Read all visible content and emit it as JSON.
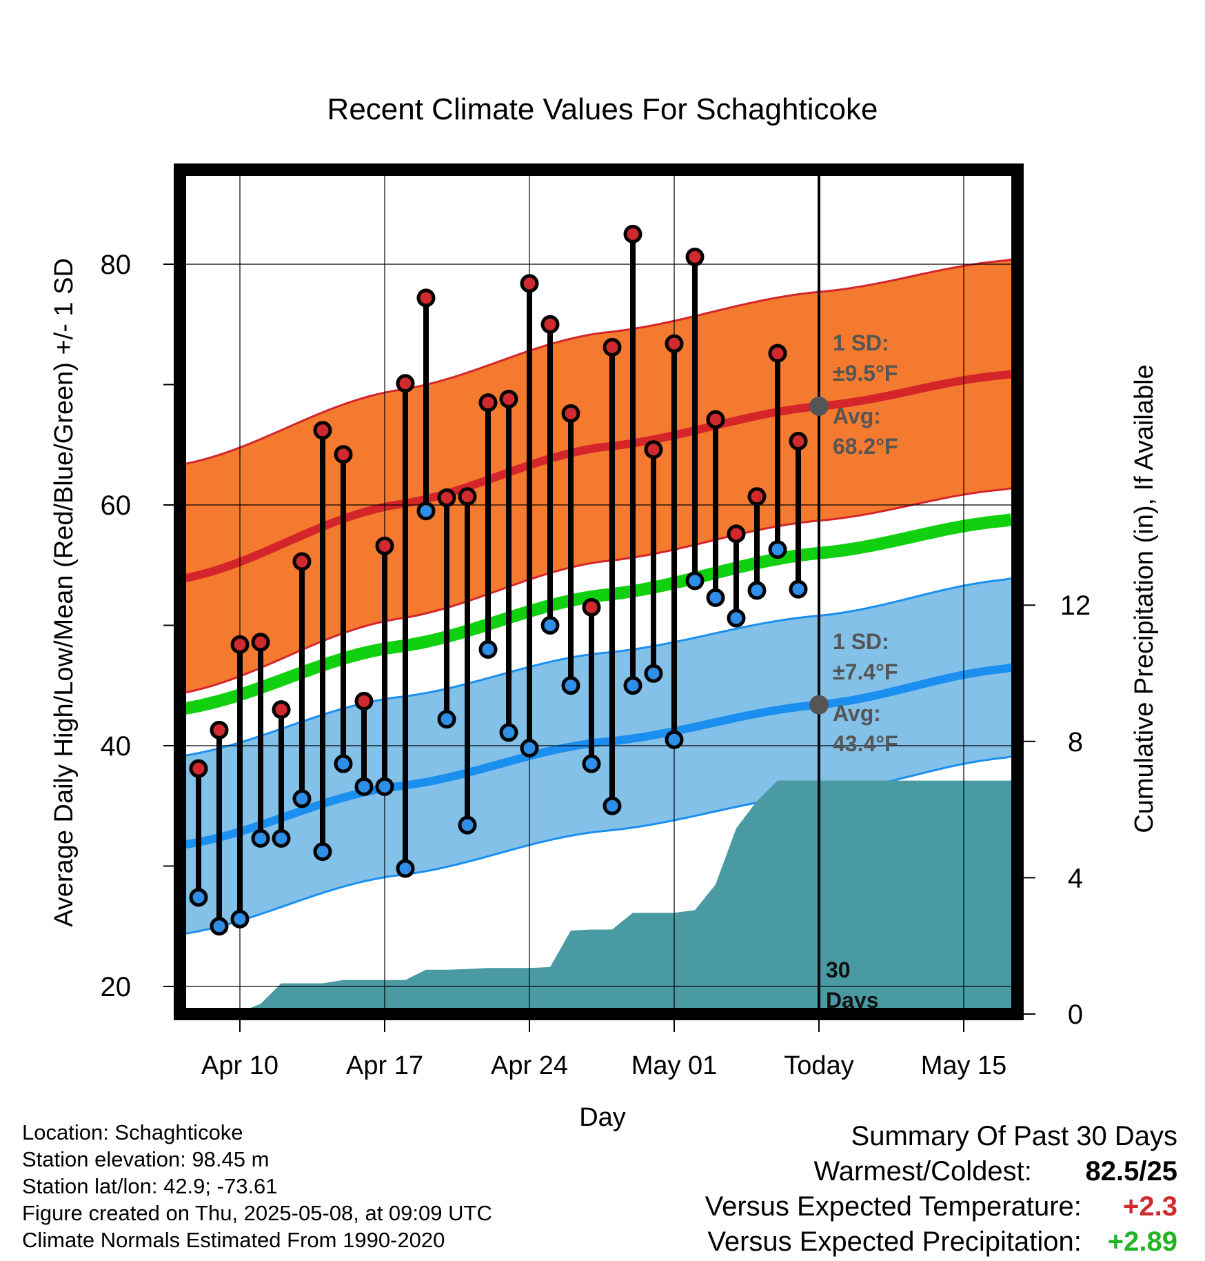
{
  "title": "Recent Climate Values For Schaghticoke",
  "chart_data": {
    "type": "scatter",
    "title": "Recent Climate Values For Schaghticoke",
    "xlabel": "Day",
    "ylabel_left": "Average Daily High/Low/Mean (Red/Blue/Green) +/- 1 SD",
    "ylabel_right": "Cumulative Precipitation (in), If Available",
    "x_ticks": [
      {
        "day": 10,
        "label": "Apr 10"
      },
      {
        "day": 17,
        "label": "Apr 17"
      },
      {
        "day": 24,
        "label": "Apr 24"
      },
      {
        "day": 31,
        "label": "May 01"
      },
      {
        "day": 38,
        "label": "Today"
      },
      {
        "day": 45,
        "label": "May 15"
      }
    ],
    "x_range": [
      6.8,
      47.3
    ],
    "y_left_ticks": [
      20,
      40,
      60,
      80
    ],
    "y_left_range": [
      17.6,
      88
    ],
    "y_right_ticks": [
      0,
      4,
      8,
      12
    ],
    "today_day": 38,
    "today_label": "30 Days",
    "grid": true,
    "days": [
      8,
      9,
      10,
      11,
      12,
      13,
      14,
      15,
      16,
      17,
      18,
      19,
      20,
      21,
      22,
      23,
      24,
      25,
      26,
      27,
      28,
      29,
      30,
      31,
      32,
      33,
      34,
      35,
      36,
      37
    ],
    "daily_high": [
      38.1,
      41.3,
      48.4,
      48.6,
      43.0,
      55.3,
      66.2,
      64.2,
      43.7,
      56.6,
      70.1,
      77.2,
      60.6,
      60.7,
      68.5,
      68.8,
      78.4,
      75.0,
      67.6,
      51.5,
      73.1,
      82.5,
      64.6,
      73.4,
      80.6,
      67.1,
      57.6,
      60.7,
      72.6,
      65.3
    ],
    "daily_low": [
      27.4,
      25.0,
      25.6,
      32.3,
      32.3,
      35.6,
      31.2,
      38.5,
      36.6,
      36.6,
      29.8,
      59.5,
      42.2,
      33.4,
      48.0,
      41.1,
      39.8,
      50.0,
      45.0,
      38.5,
      35.0,
      45.0,
      46.0,
      40.5,
      53.7,
      52.3,
      50.6,
      52.9,
      56.3,
      53.0
    ],
    "normal_high": {
      "series": "Avg",
      "days": [
        7,
        17.5,
        27.5,
        38,
        47
      ],
      "values": [
        53.8,
        60.0,
        64.8,
        68.2,
        70.8
      ]
    },
    "normal_high_sd": 9.5,
    "normal_low": {
      "series": "Avg",
      "days": [
        7,
        17.5,
        27.5,
        38,
        47
      ],
      "values": [
        31.7,
        36.6,
        40.3,
        43.4,
        46.4
      ]
    },
    "normal_low_sd": 7.4,
    "normal_mean": {
      "days": [
        7,
        17.5,
        27.5,
        38,
        47
      ],
      "values": [
        43.0,
        48.2,
        52.5,
        56.0,
        58.7
      ]
    },
    "cumulative_precip": {
      "days": [
        9.5,
        10,
        11,
        12,
        13,
        14,
        15,
        16,
        17,
        18,
        19,
        20,
        21,
        22,
        23,
        24,
        25,
        26,
        27,
        28,
        29,
        30,
        31,
        32,
        33,
        34,
        35,
        36,
        37,
        38,
        47.3
      ],
      "values": [
        0,
        0.05,
        0.3,
        0.9,
        0.9,
        0.9,
        1.0,
        1.0,
        1.0,
        1.0,
        1.3,
        1.3,
        1.32,
        1.35,
        1.35,
        1.35,
        1.38,
        2.45,
        2.48,
        2.48,
        2.97,
        2.97,
        2.97,
        3.05,
        3.8,
        5.45,
        6.25,
        6.85,
        6.85,
        6.85,
        6.85
      ]
    },
    "annotations": {
      "high_sd": "1 SD:",
      "high_sd_value": "±9.5°F",
      "high_avg": "Avg:",
      "high_avg_value": "68.2°F",
      "low_sd": "1 SD:",
      "low_sd_value": "±7.4°F",
      "low_avg": "Avg:",
      "low_avg_value": "43.4°F",
      "today_days_num": "30",
      "today_days_word": "Days"
    },
    "colors": {
      "high_band": "#f47a2f",
      "high_line": "#d4262a",
      "low_band": "#84c1e8",
      "low_line": "#1a8ff0",
      "mean_line": "#10d010",
      "precip": "#4a9aa4",
      "high_dot": "#d12a2e",
      "low_dot": "#2f8ee8",
      "annotation": "#555555"
    }
  },
  "info": {
    "location": "Location: Schaghticoke",
    "elevation": "Station elevation: 98.45 m",
    "latlon": "Station lat/lon: 42.9; -73.61",
    "created": "Figure created on Thu, 2025-05-08, at 09:09 UTC",
    "normals": "Climate Normals Estimated From 1990-2020"
  },
  "summary": {
    "heading": "Summary Of Past 30 Days",
    "warmest_label": "Warmest/Coldest:",
    "warmest_value": "82.5/25",
    "temp_label": "Versus Expected Temperature:",
    "temp_value": "+2.3",
    "temp_color": "#d12a2e",
    "precip_label": "Versus Expected Precipitation:",
    "precip_value": "+2.89",
    "precip_color": "#22b422"
  }
}
